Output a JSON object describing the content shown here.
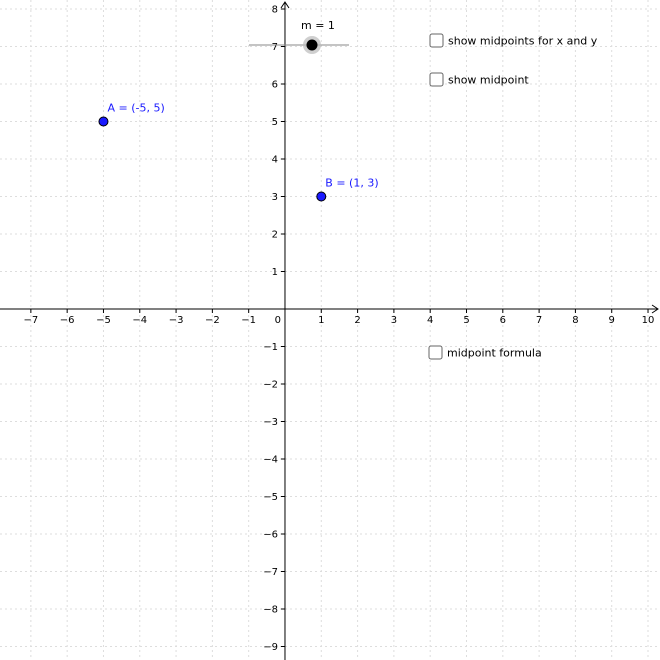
{
  "graph": {
    "xlim": [
      -7.85,
      10.33
    ],
    "ylim": [
      -9.36,
      8.24
    ],
    "grid": true,
    "xticks": [
      {
        "value": -7,
        "label": "−7"
      },
      {
        "value": -6,
        "label": "−6"
      },
      {
        "value": -5,
        "label": "−5"
      },
      {
        "value": -4,
        "label": "−4"
      },
      {
        "value": -3,
        "label": "−3"
      },
      {
        "value": -2,
        "label": "−2"
      },
      {
        "value": -1,
        "label": "−1"
      },
      0,
      1,
      2,
      3,
      4,
      5,
      6,
      7,
      8,
      9,
      10
    ],
    "yticks": [
      {
        "value": -9,
        "label": "−9"
      },
      {
        "value": -8,
        "label": "−8"
      },
      {
        "value": -7,
        "label": "−7"
      },
      {
        "value": -6,
        "label": "−6"
      },
      {
        "value": -5,
        "label": "−5"
      },
      {
        "value": -4,
        "label": "−4"
      },
      {
        "value": -3,
        "label": "−3"
      },
      {
        "value": -2,
        "label": "−2"
      },
      {
        "value": -1,
        "label": "−1"
      },
      1,
      2,
      3,
      4,
      5,
      6,
      7,
      8
    ],
    "points": [
      {
        "label": "A = (-5, 5)",
        "x": -5,
        "y": 5
      },
      {
        "label": "B = (1, 3)",
        "x": 1,
        "y": 3
      }
    ],
    "point_color": "#1a1aff",
    "slider": {
      "label": "m = 1",
      "value": 1
    }
  },
  "checkboxes": [
    "show midpoints for x and y",
    "show midpoint",
    "midpoint formula"
  ]
}
